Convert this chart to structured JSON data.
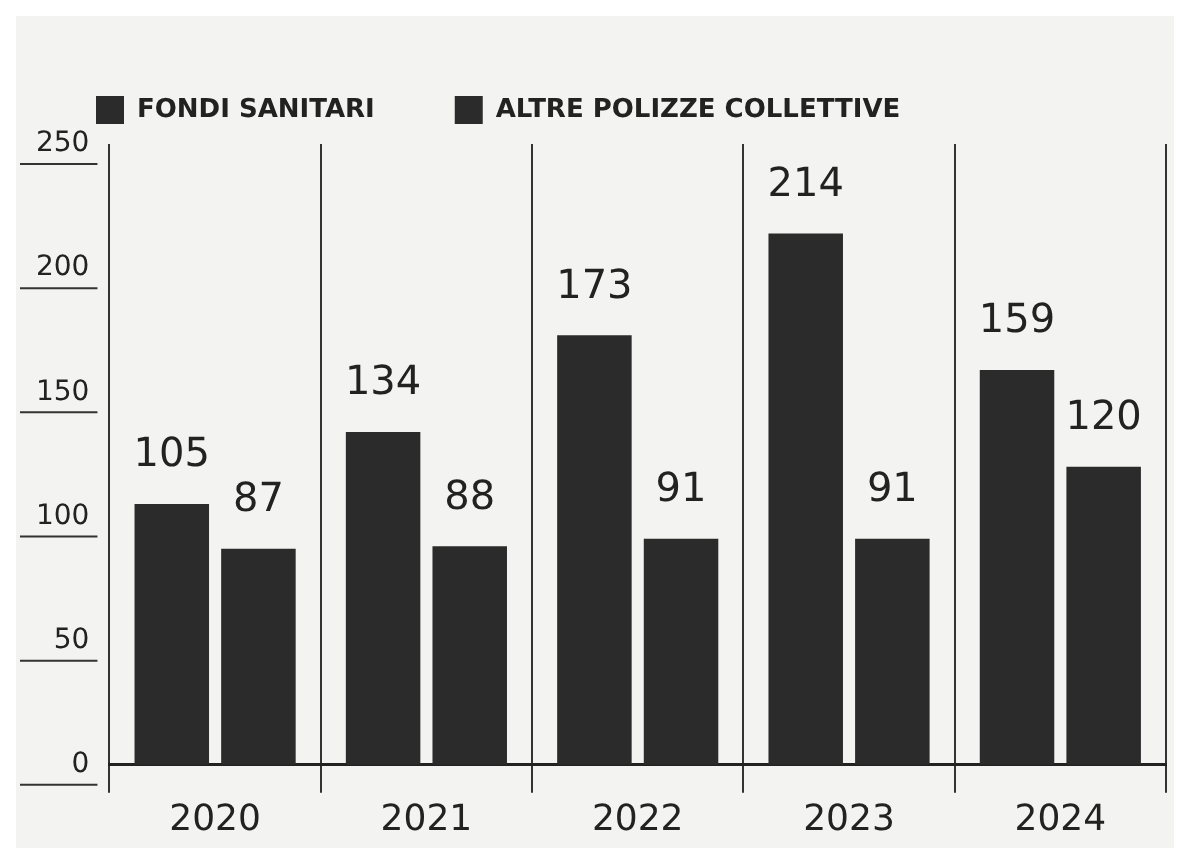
{
  "chart_data": {
    "type": "bar",
    "categories": [
      "2020",
      "2021",
      "2022",
      "2023",
      "2024"
    ],
    "series": [
      {
        "name": "FONDI SANITARI",
        "color": "#2b2b2b",
        "values": [
          105,
          134,
          173,
          214,
          159
        ]
      },
      {
        "name": "ALTRE POLIZZE COLLETTIVE",
        "color": "#2b2b2b",
        "values": [
          87,
          88,
          91,
          91,
          120
        ]
      }
    ],
    "ylim": [
      0,
      250
    ],
    "yticks": [
      0,
      50,
      100,
      150,
      200,
      250
    ],
    "grid": "x",
    "legend": "top left",
    "data_labels": true
  }
}
